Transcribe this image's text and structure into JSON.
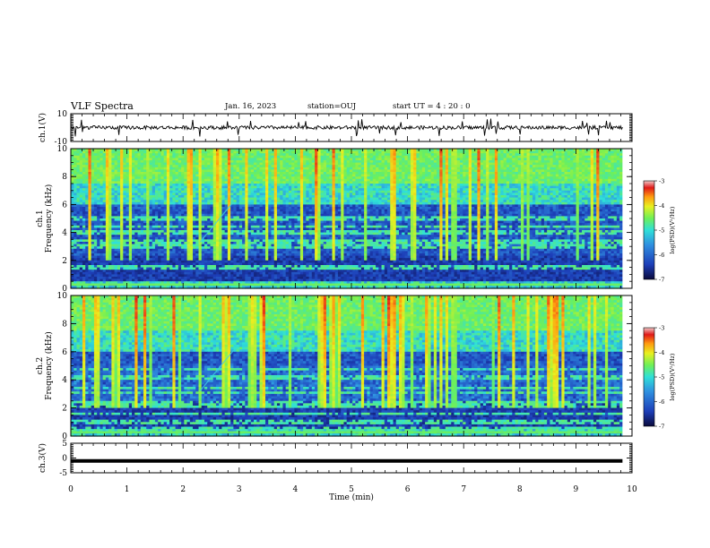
{
  "header": {
    "title": "VLF Spectra",
    "date": "Jan. 16, 2023",
    "station": "station=OUJ",
    "start": "start UT = 4 : 20 : 0"
  },
  "colors": {
    "waveform": "#000000",
    "colormap": [
      "#0a0a3c",
      "#1d3eb8",
      "#2f8fe0",
      "#2fe0d8",
      "#6ef058",
      "#e8f020",
      "#ff9a10",
      "#e01818",
      "#f0c8c8"
    ]
  },
  "chart_data": [
    {
      "type": "line",
      "panel": "ch1-waveform",
      "ylabel": "ch.1(V)",
      "ylim": [
        -10,
        10
      ],
      "yticks": [
        10,
        -10
      ],
      "xlim": [
        0,
        10
      ],
      "description_level": "noise around 0 V with spikes to about ±3 V"
    },
    {
      "type": "heatmap",
      "panel": "ch1-spectrogram",
      "ylabel_line1": "ch.1",
      "ylabel_line2": "Frequency (kHz)",
      "ylim": [
        0,
        10
      ],
      "yticks": [
        0,
        2,
        4,
        6,
        8,
        10
      ],
      "xlim": [
        0,
        10
      ],
      "colorbar": {
        "label": "log(PSD)(V²/Hz)",
        "range": [
          -7,
          -3
        ],
        "ticks": [
          "-3",
          "-4",
          "-5",
          "-6",
          "-7"
        ]
      }
    },
    {
      "type": "heatmap",
      "panel": "ch2-spectrogram",
      "ylabel_line1": "ch.2",
      "ylabel_line2": "Frequency (kHz)",
      "ylim": [
        0,
        10
      ],
      "yticks": [
        0,
        2,
        4,
        6,
        8,
        10
      ],
      "xlim": [
        0,
        10
      ],
      "colorbar": {
        "label": "log(PSD)(V²/Hz)",
        "range": [
          -7,
          -3
        ],
        "ticks": [
          "-3",
          "-4",
          "-5",
          "-6",
          "-7"
        ]
      }
    },
    {
      "type": "line",
      "panel": "ch3-waveform",
      "ylabel": "ch.3(V)",
      "ylim": [
        -5,
        5
      ],
      "yticks": [
        5,
        0,
        -5
      ],
      "xlim": [
        0,
        10
      ],
      "value": -1.0
    }
  ],
  "xaxis": {
    "label": "Time (min)",
    "ticks": [
      "0",
      "1",
      "2",
      "3",
      "4",
      "5",
      "6",
      "7",
      "8",
      "9",
      "10"
    ],
    "data_end": 9.83
  }
}
